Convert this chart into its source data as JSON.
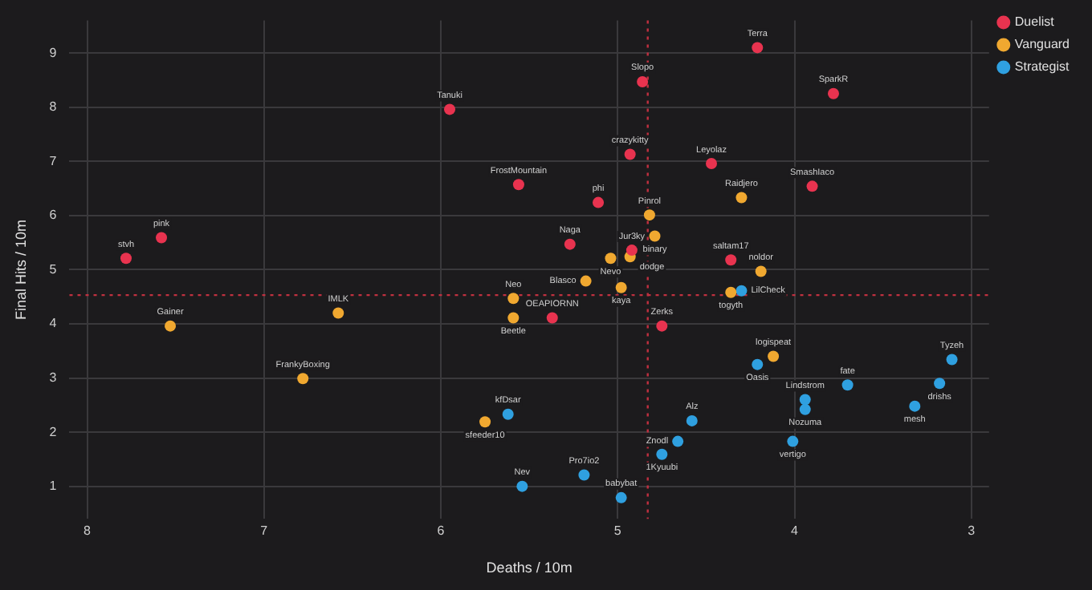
{
  "chart_data": {
    "type": "scatter",
    "xlabel": "Deaths / 10m",
    "ylabel": "Final Hits / 10m",
    "xlim": [
      8.1,
      2.9
    ],
    "xticks": [
      8,
      7,
      6,
      5,
      4,
      3
    ],
    "ylim": [
      0.4,
      9.6
    ],
    "yticks": [
      1,
      2,
      3,
      4,
      5,
      6,
      7,
      8,
      9
    ],
    "grid": true,
    "legend": "top right",
    "marker": "circle",
    "ref_lines": [
      {
        "axis": "x",
        "value": 4.83,
        "color": "#c03040",
        "line_style": "dotted"
      },
      {
        "axis": "y",
        "value": 4.53,
        "color": "#c03040",
        "line_style": "dotted"
      }
    ],
    "series": [
      {
        "name": "Duelist",
        "color": "#e8334f",
        "x": [
          4.21,
          3.78,
          4.86,
          5.95,
          4.93,
          4.47,
          5.56,
          3.9,
          5.11,
          5.27,
          4.92,
          4.36,
          7.58,
          7.78,
          5.37,
          4.75
        ],
        "values": [
          9.1,
          8.25,
          8.47,
          7.96,
          7.13,
          6.96,
          6.57,
          6.54,
          6.24,
          5.47,
          5.36,
          5.18,
          5.59,
          5.21,
          4.11,
          3.96
        ]
      },
      {
        "name": "Vanguard",
        "color": "#f0a830",
        "x": [
          4.82,
          4.3,
          4.79,
          5.04,
          4.93,
          5.18,
          4.98,
          4.19,
          4.36,
          5.59,
          5.59,
          6.58,
          7.53,
          6.78,
          4.12,
          5.75
        ],
        "values": [
          6.01,
          6.33,
          5.62,
          5.21,
          5.24,
          4.79,
          4.67,
          4.97,
          4.58,
          4.47,
          4.11,
          4.2,
          3.96,
          2.99,
          3.4,
          2.19
        ]
      },
      {
        "name": "Strategist",
        "color": "#2fa0e0",
        "x": [
          4.3,
          4.21,
          3.11,
          3.7,
          3.18,
          3.94,
          3.94,
          3.32,
          4.01,
          5.62,
          4.58,
          4.66,
          4.75,
          5.19,
          5.54,
          4.98
        ],
        "values": [
          4.61,
          3.25,
          3.34,
          2.87,
          2.9,
          2.6,
          2.42,
          2.48,
          1.83,
          2.33,
          2.21,
          1.83,
          1.59,
          1.21,
          1.0,
          0.79
        ]
      }
    ],
    "annotations": [
      {
        "text": "Terra",
        "x": 4.21,
        "y": 9.1
      },
      {
        "text": "SparkR",
        "x": 3.78,
        "y": 8.25
      },
      {
        "text": "Slopo",
        "x": 4.86,
        "y": 8.47
      },
      {
        "text": "Tanuki",
        "x": 5.95,
        "y": 7.96
      },
      {
        "text": "crazykitty",
        "x": 4.93,
        "y": 7.13
      },
      {
        "text": "Leyolaz",
        "x": 4.47,
        "y": 6.96
      },
      {
        "text": "FrostMountain",
        "x": 5.56,
        "y": 6.57
      },
      {
        "text": "SmashIaco",
        "x": 3.9,
        "y": 6.54
      },
      {
        "text": "phi",
        "x": 5.11,
        "y": 6.24
      },
      {
        "text": "Naga",
        "x": 5.27,
        "y": 5.47
      },
      {
        "text": "Jur3ky",
        "x": 4.92,
        "y": 5.36
      },
      {
        "text": "saltam17",
        "x": 4.36,
        "y": 5.18
      },
      {
        "text": "pink",
        "x": 7.58,
        "y": 5.59
      },
      {
        "text": "stvh",
        "x": 7.78,
        "y": 5.21
      },
      {
        "text": "OEAPIORNN",
        "x": 5.37,
        "y": 4.11
      },
      {
        "text": "Zerks",
        "x": 4.75,
        "y": 3.96
      },
      {
        "text": "Pinrol",
        "x": 4.82,
        "y": 6.01
      },
      {
        "text": "Raidjero",
        "x": 4.3,
        "y": 6.33
      },
      {
        "text": "binary",
        "x": 4.79,
        "y": 5.62
      },
      {
        "text": "Nevo",
        "x": 5.04,
        "y": 5.21
      },
      {
        "text": "dodge",
        "x": 4.93,
        "y": 5.24
      },
      {
        "text": "Blasco",
        "x": 5.18,
        "y": 4.79
      },
      {
        "text": "kaya",
        "x": 4.98,
        "y": 4.67
      },
      {
        "text": "noldor",
        "x": 4.19,
        "y": 4.97
      },
      {
        "text": "togyth",
        "x": 4.36,
        "y": 4.58
      },
      {
        "text": "Neo",
        "x": 5.59,
        "y": 4.47
      },
      {
        "text": "Beetle",
        "x": 5.59,
        "y": 4.11
      },
      {
        "text": "IMLK",
        "x": 6.58,
        "y": 4.2
      },
      {
        "text": "Gainer",
        "x": 7.53,
        "y": 3.96
      },
      {
        "text": "FrankyBoxing",
        "x": 6.78,
        "y": 2.99
      },
      {
        "text": "logispeat",
        "x": 4.12,
        "y": 3.4
      },
      {
        "text": "sfeeder10",
        "x": 5.75,
        "y": 2.19
      },
      {
        "text": "LilCheck",
        "x": 4.3,
        "y": 4.61
      },
      {
        "text": "Oasis",
        "x": 4.21,
        "y": 3.25
      },
      {
        "text": "Tyzeh",
        "x": 3.11,
        "y": 3.34
      },
      {
        "text": "fate",
        "x": 3.7,
        "y": 2.87
      },
      {
        "text": "drishs",
        "x": 3.18,
        "y": 2.9
      },
      {
        "text": "Lindstrom",
        "x": 3.94,
        "y": 2.6
      },
      {
        "text": "Nozuma",
        "x": 3.94,
        "y": 2.42
      },
      {
        "text": "mesh",
        "x": 3.32,
        "y": 2.48
      },
      {
        "text": "vertigo",
        "x": 4.01,
        "y": 1.83
      },
      {
        "text": "kfDsar",
        "x": 5.62,
        "y": 2.33
      },
      {
        "text": "Alz",
        "x": 4.58,
        "y": 2.21
      },
      {
        "text": "Znodl",
        "x": 4.66,
        "y": 1.83
      },
      {
        "text": "1Kyuubi",
        "x": 4.75,
        "y": 1.59
      },
      {
        "text": "Pro7io2",
        "x": 5.19,
        "y": 1.21
      },
      {
        "text": "Nev",
        "x": 5.54,
        "y": 1.0
      },
      {
        "text": "babybat",
        "x": 4.98,
        "y": 0.79
      }
    ]
  }
}
